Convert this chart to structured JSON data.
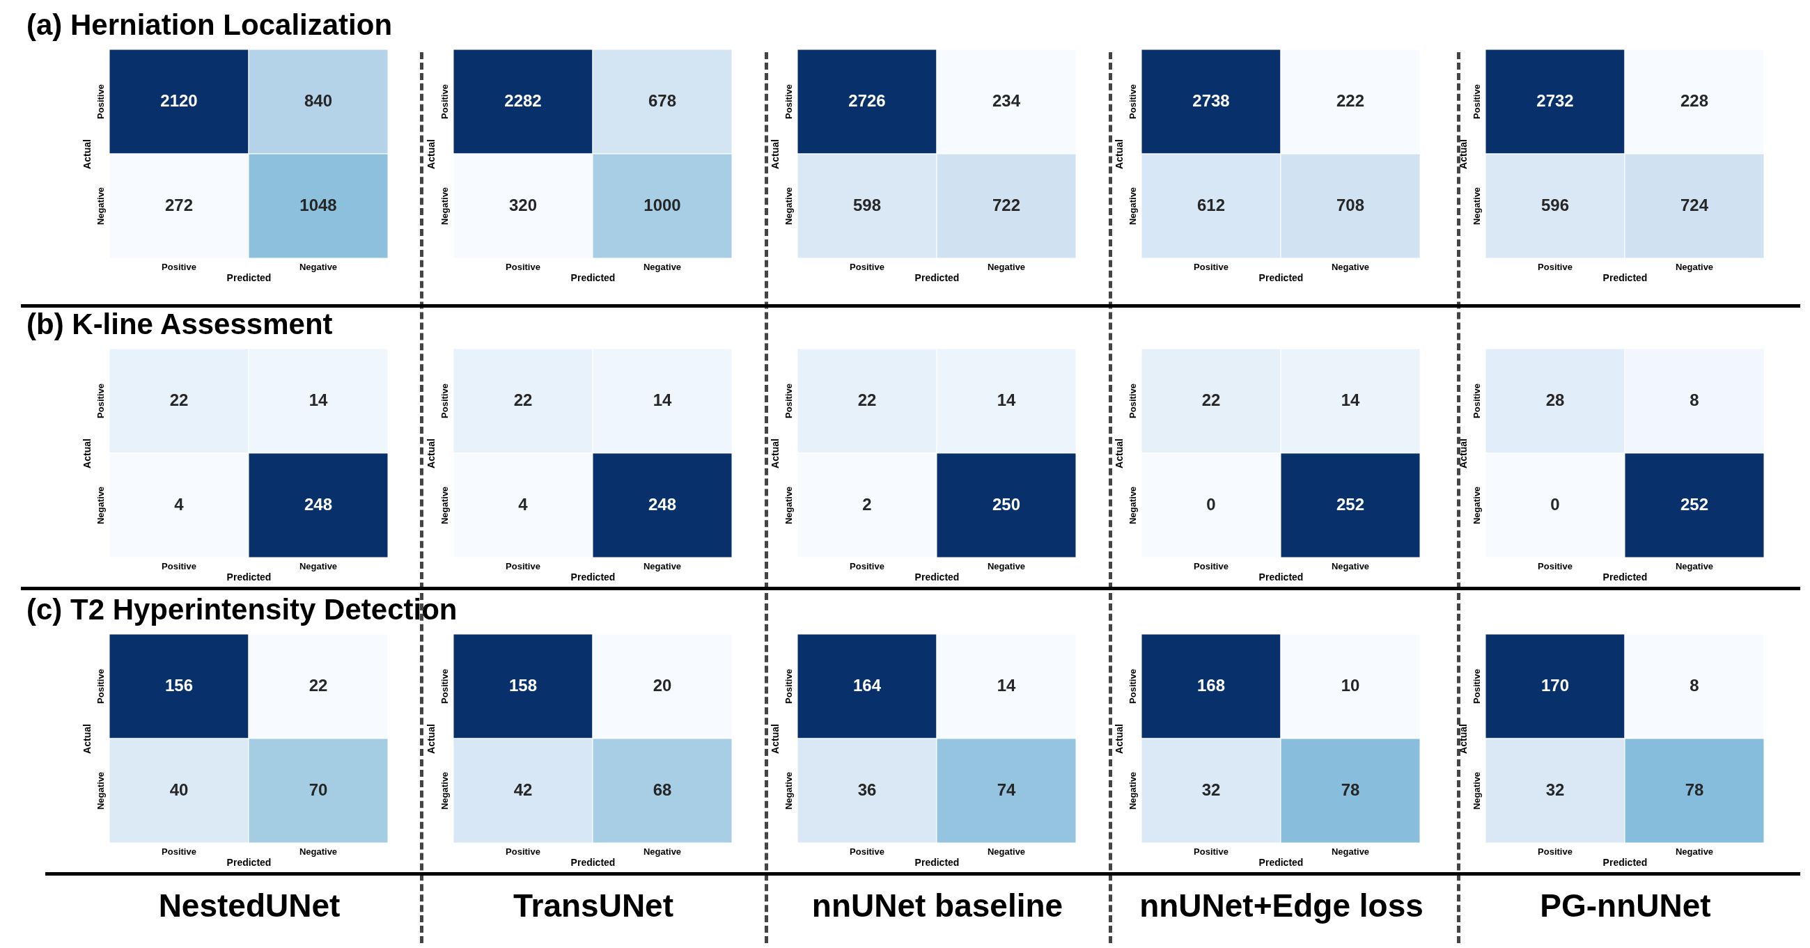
{
  "chart_data": [
    {
      "type": "heatmap",
      "title": "(a) Herniation Localization",
      "xlabel": "Predicted",
      "ylabel": "Actual",
      "categories": [
        "Positive",
        "Negative"
      ],
      "y_categories": [
        "Positive",
        "Negative"
      ],
      "cells": [
        [
          2120,
          840
        ],
        [
          272,
          1048
        ]
      ],
      "data_labels": true
    },
    {
      "type": "heatmap",
      "xlabel": "Predicted",
      "ylabel": "Actual",
      "categories": [
        "Positive",
        "Negative"
      ],
      "y_categories": [
        "Positive",
        "Negative"
      ],
      "cells": [
        [
          2282,
          678
        ],
        [
          320,
          1000
        ]
      ],
      "data_labels": true
    },
    {
      "type": "heatmap",
      "xlabel": "Predicted",
      "ylabel": "Actual",
      "categories": [
        "Positive",
        "Negative"
      ],
      "y_categories": [
        "Positive",
        "Negative"
      ],
      "cells": [
        [
          2726,
          234
        ],
        [
          598,
          722
        ]
      ],
      "data_labels": true
    },
    {
      "type": "heatmap",
      "xlabel": "Predicted",
      "ylabel": "Actual",
      "categories": [
        "Positive",
        "Negative"
      ],
      "y_categories": [
        "Positive",
        "Negative"
      ],
      "cells": [
        [
          2738,
          222
        ],
        [
          612,
          708
        ]
      ],
      "data_labels": true
    },
    {
      "type": "heatmap",
      "xlabel": "Predicted",
      "ylabel": "Actual",
      "categories": [
        "Positive",
        "Negative"
      ],
      "y_categories": [
        "Positive",
        "Negative"
      ],
      "cells": [
        [
          2732,
          228
        ],
        [
          596,
          724
        ]
      ],
      "data_labels": true
    },
    {
      "type": "heatmap",
      "title": "(b) K-line Assessment",
      "xlabel": "Predicted",
      "ylabel": "Actual",
      "categories": [
        "Positive",
        "Negative"
      ],
      "y_categories": [
        "Positive",
        "Negative"
      ],
      "cells": [
        [
          22,
          14
        ],
        [
          4,
          248
        ]
      ],
      "data_labels": true
    },
    {
      "type": "heatmap",
      "xlabel": "Predicted",
      "ylabel": "Actual",
      "categories": [
        "Positive",
        "Negative"
      ],
      "y_categories": [
        "Positive",
        "Negative"
      ],
      "cells": [
        [
          22,
          14
        ],
        [
          4,
          248
        ]
      ],
      "data_labels": true
    },
    {
      "type": "heatmap",
      "xlabel": "Predicted",
      "ylabel": "Actual",
      "categories": [
        "Positive",
        "Negative"
      ],
      "y_categories": [
        "Positive",
        "Negative"
      ],
      "cells": [
        [
          22,
          14
        ],
        [
          2,
          250
        ]
      ],
      "data_labels": true
    },
    {
      "type": "heatmap",
      "xlabel": "Predicted",
      "ylabel": "Actual",
      "categories": [
        "Positive",
        "Negative"
      ],
      "y_categories": [
        "Positive",
        "Negative"
      ],
      "cells": [
        [
          22,
          14
        ],
        [
          0,
          252
        ]
      ],
      "data_labels": true
    },
    {
      "type": "heatmap",
      "xlabel": "Predicted",
      "ylabel": "Actual",
      "categories": [
        "Positive",
        "Negative"
      ],
      "y_categories": [
        "Positive",
        "Negative"
      ],
      "cells": [
        [
          28,
          8
        ],
        [
          0,
          252
        ]
      ],
      "data_labels": true
    },
    {
      "type": "heatmap",
      "title": "(c) T2 Hyperintensity Detection",
      "xlabel": "Predicted",
      "ylabel": "Actual",
      "categories": [
        "Positive",
        "Negative"
      ],
      "y_categories": [
        "Positive",
        "Negative"
      ],
      "cells": [
        [
          156,
          22
        ],
        [
          40,
          70
        ]
      ],
      "data_labels": true,
      "annotations": [
        "NestedUNet"
      ]
    },
    {
      "type": "heatmap",
      "xlabel": "Predicted",
      "ylabel": "Actual",
      "categories": [
        "Positive",
        "Negative"
      ],
      "y_categories": [
        "Positive",
        "Negative"
      ],
      "cells": [
        [
          158,
          20
        ],
        [
          42,
          68
        ]
      ],
      "data_labels": true,
      "annotations": [
        "TransUNet"
      ]
    },
    {
      "type": "heatmap",
      "xlabel": "Predicted",
      "ylabel": "Actual",
      "categories": [
        "Positive",
        "Negative"
      ],
      "y_categories": [
        "Positive",
        "Negative"
      ],
      "cells": [
        [
          164,
          14
        ],
        [
          36,
          74
        ]
      ],
      "data_labels": true,
      "annotations": [
        "nnUNet baseline"
      ]
    },
    {
      "type": "heatmap",
      "xlabel": "Predicted",
      "ylabel": "Actual",
      "categories": [
        "Positive",
        "Negative"
      ],
      "y_categories": [
        "Positive",
        "Negative"
      ],
      "cells": [
        [
          168,
          10
        ],
        [
          32,
          78
        ]
      ],
      "data_labels": true,
      "annotations": [
        "nnUNet+Edge loss"
      ]
    },
    {
      "type": "heatmap",
      "xlabel": "Predicted",
      "ylabel": "Actual",
      "categories": [
        "Positive",
        "Negative"
      ],
      "y_categories": [
        "Positive",
        "Negative"
      ],
      "cells": [
        [
          170,
          8
        ],
        [
          32,
          78
        ]
      ],
      "data_labels": true,
      "annotations": [
        "PG-nnUNet"
      ]
    }
  ]
}
